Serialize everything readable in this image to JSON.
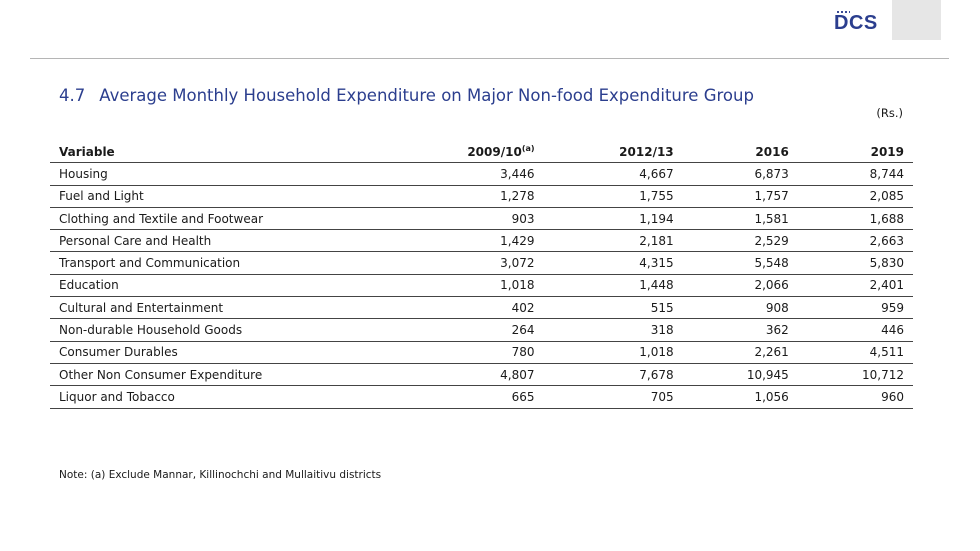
{
  "header": {
    "logo_text": "DCS"
  },
  "title": {
    "number": "4.7",
    "text": "Average  Monthly Household Expenditure on Major Non-food  Expenditure Group"
  },
  "unit": "(Rs.)",
  "table": {
    "headers": [
      "Variable",
      "2009/10",
      "2012/13",
      "2016",
      "2019"
    ],
    "header_sup": "(a)",
    "rows": [
      [
        "Housing",
        "3,446",
        "4,667",
        "6,873",
        "8,744"
      ],
      [
        "Fuel and Light",
        "1,278",
        "1,755",
        "1,757",
        "2,085"
      ],
      [
        "Clothing and Textile and Footwear",
        "903",
        "1,194",
        "1,581",
        "1,688"
      ],
      [
        "Personal Care and Health",
        "1,429",
        "2,181",
        "2,529",
        "2,663"
      ],
      [
        "Transport and Communication",
        "3,072",
        "4,315",
        "5,548",
        "5,830"
      ],
      [
        "Education",
        "1,018",
        "1,448",
        "2,066",
        "2,401"
      ],
      [
        "Cultural and Entertainment",
        "402",
        "515",
        "908",
        "959"
      ],
      [
        "Non-durable Household Goods",
        "264",
        "318",
        "362",
        "446"
      ],
      [
        "Consumer Durables",
        "780",
        "1,018",
        "2,261",
        "4,511"
      ],
      [
        "Other Non Consumer Expenditure",
        "4,807",
        "7,678",
        "10,945",
        "10,712"
      ],
      [
        "Liquor and Tobacco",
        "665",
        "705",
        "1,056",
        "960"
      ]
    ]
  },
  "note": "Note: (a) Exclude Mannar, Killinochchi and Mullaitivu districts"
}
